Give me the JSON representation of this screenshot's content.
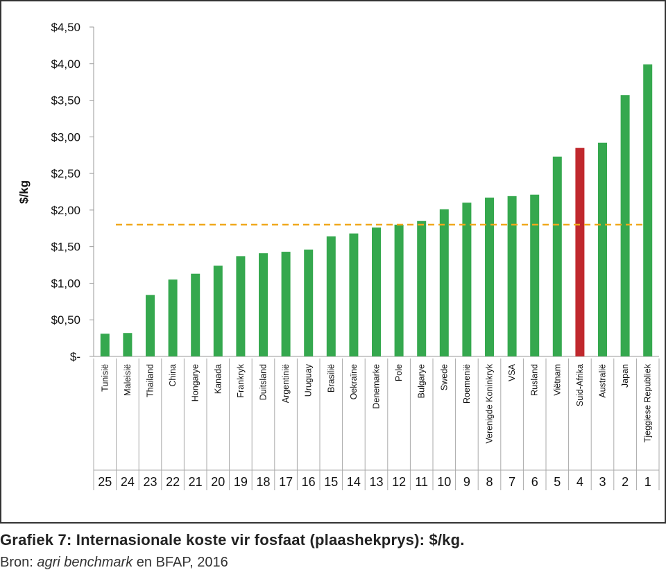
{
  "chart_data": {
    "type": "bar",
    "ylabel": "$/kg",
    "ylim": [
      0,
      4.5
    ],
    "ytick_values": [
      0,
      0.5,
      1.0,
      1.5,
      2.0,
      2.5,
      3.0,
      3.5,
      4.0,
      4.5
    ],
    "ytick_labels": [
      "$-",
      "$0,50",
      "$1,00",
      "$1,50",
      "$2,00",
      "$2,50",
      "$3,00",
      "$3,50",
      "$4,00",
      "$4,50"
    ],
    "categories": [
      "Tunisië",
      "Maleisië",
      "Thailand",
      "China",
      "Hongarye",
      "Kanada",
      "Frankryk",
      "Duitsland",
      "Argentinië",
      "Uruguay",
      "Brasilië",
      "Oekraïne",
      "Denemarke",
      "Pole",
      "Bulgarye",
      "Swede",
      "Roemenië",
      "Verenigde Koninkryk",
      "VSA",
      "Rusland",
      "Viëtnam",
      "Suid-Afrika",
      "Australië",
      "Japan",
      "Tjeggiese Republiek"
    ],
    "ranks": [
      "25",
      "24",
      "23",
      "22",
      "21",
      "20",
      "19",
      "18",
      "17",
      "16",
      "15",
      "14",
      "13",
      "12",
      "11",
      "10",
      "9",
      "8",
      "7",
      "6",
      "5",
      "4",
      "3",
      "2",
      "1"
    ],
    "values": [
      0.31,
      0.32,
      0.84,
      1.05,
      1.13,
      1.24,
      1.37,
      1.41,
      1.43,
      1.46,
      1.64,
      1.68,
      1.76,
      1.8,
      1.85,
      2.01,
      2.1,
      2.17,
      2.19,
      2.21,
      2.73,
      2.85,
      2.92,
      3.57,
      3.99
    ],
    "highlight": "Suid-Afrika",
    "reference_line": 1.8,
    "colors": {
      "bar": "#35a84e",
      "highlight": "#c0282d",
      "reference_line": "#f0a81c",
      "axis": "#999999"
    }
  },
  "caption": {
    "title": "Grafiek 7: Internasionale koste vir fosfaat (plaashekprys): $/kg.",
    "source_prefix": "Bron: ",
    "source_italic": "agri benchmark",
    "source_suffix": " en BFAP, 2016"
  }
}
